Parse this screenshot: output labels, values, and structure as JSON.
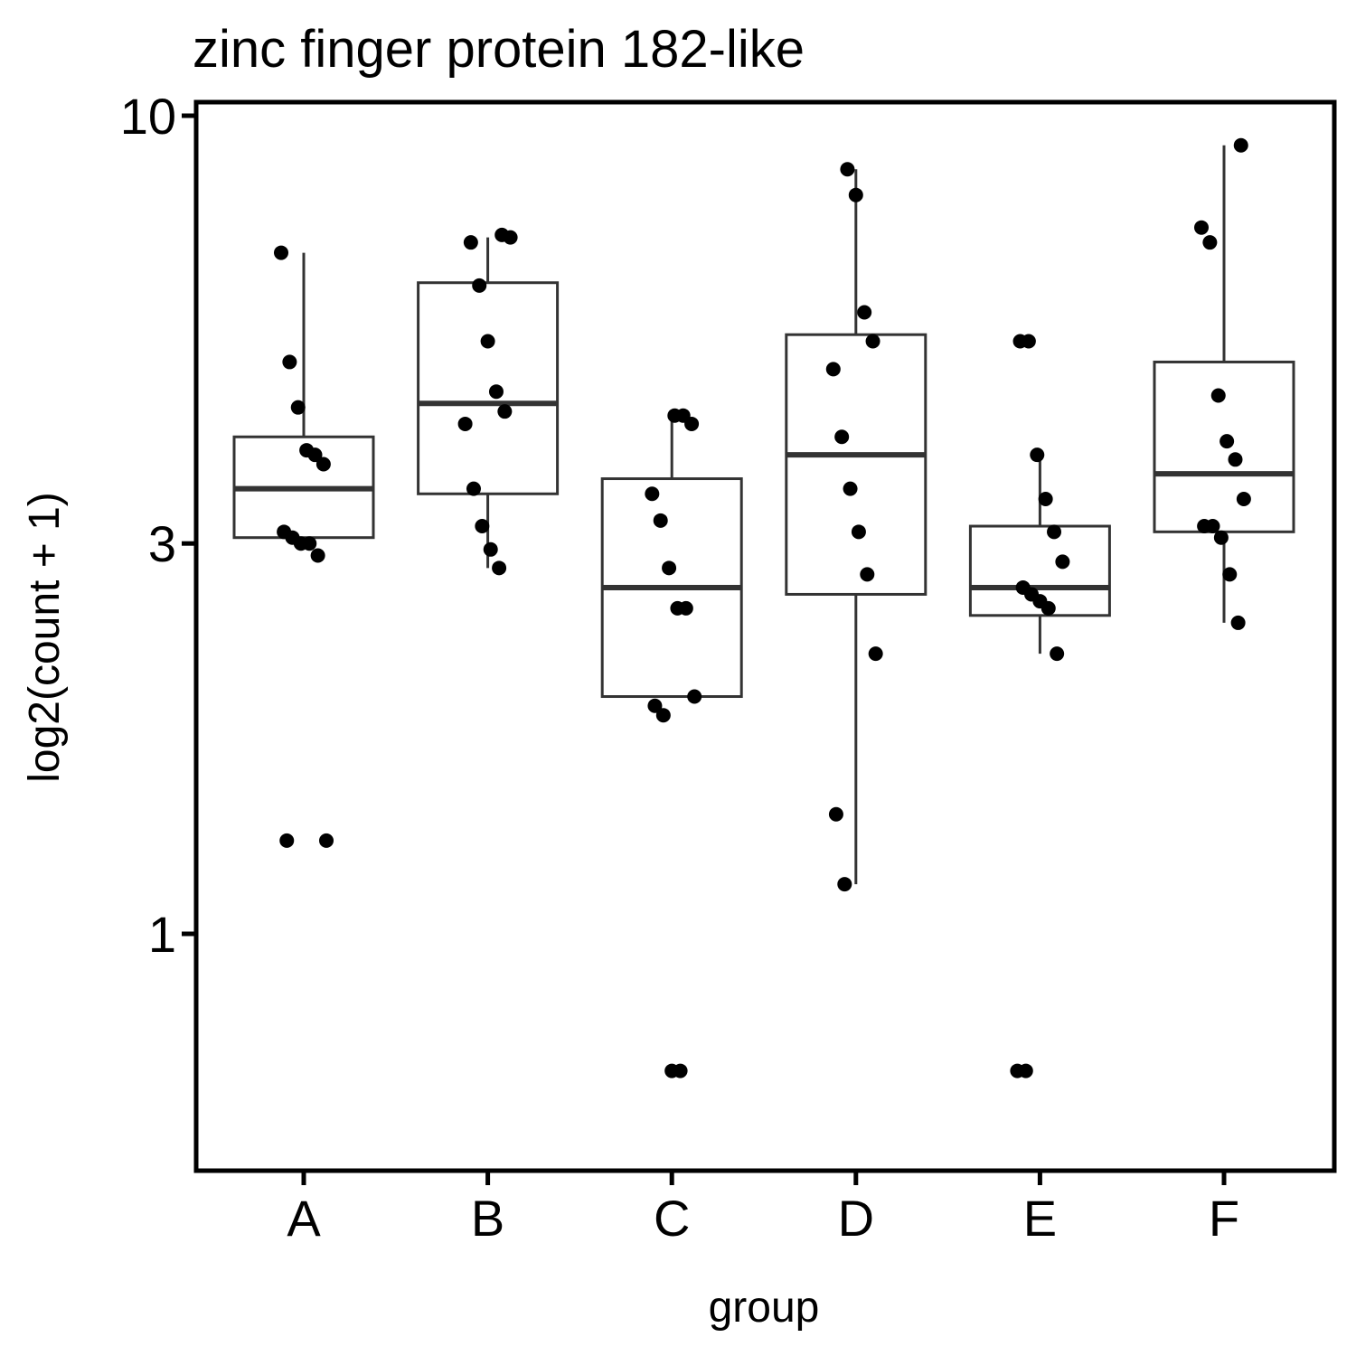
{
  "chart_data": {
    "type": "box",
    "title": "zinc finger protein 182-like",
    "xlabel": "group",
    "ylabel": "log2(count + 1)",
    "y_scale": "log",
    "ylim": [
      0.55,
      10.3
    ],
    "yticks": [
      1,
      3,
      10
    ],
    "ytick_labels": [
      "1",
      "3",
      "10"
    ],
    "categories": [
      "A",
      "B",
      "C",
      "D",
      "E",
      "F"
    ],
    "box_stats": [
      {
        "group": "A",
        "whisker_low": 3.05,
        "q1": 3.05,
        "median": 3.5,
        "q3": 4.05,
        "whisker_high": 6.8
      },
      {
        "group": "B",
        "whisker_low": 2.8,
        "q1": 3.45,
        "median": 4.45,
        "q3": 6.25,
        "whisker_high": 7.1
      },
      {
        "group": "C",
        "whisker_low": 1.95,
        "q1": 1.95,
        "median": 2.65,
        "q3": 3.6,
        "whisker_high": 4.3
      },
      {
        "group": "D",
        "whisker_low": 1.15,
        "q1": 2.6,
        "median": 3.85,
        "q3": 5.4,
        "whisker_high": 8.6
      },
      {
        "group": "E",
        "whisker_low": 2.2,
        "q1": 2.45,
        "median": 2.65,
        "q3": 3.15,
        "whisker_high": 3.8
      },
      {
        "group": "F",
        "whisker_low": 2.4,
        "q1": 3.1,
        "median": 3.65,
        "q3": 5.0,
        "whisker_high": 9.2
      }
    ],
    "points": [
      {
        "group": "A",
        "values": [
          6.8,
          5.0,
          4.4,
          3.9,
          3.85,
          3.75,
          3.1,
          3.05,
          3.0,
          3.0,
          2.9,
          1.3,
          1.3
        ]
      },
      {
        "group": "B",
        "values": [
          7.15,
          7.1,
          7.0,
          6.2,
          5.3,
          4.6,
          4.35,
          4.2,
          3.5,
          3.15,
          2.95,
          2.8
        ]
      },
      {
        "group": "C",
        "values": [
          4.3,
          4.3,
          4.2,
          3.45,
          3.2,
          2.8,
          2.5,
          2.5,
          1.95,
          1.9,
          1.85,
          0.68,
          0.68
        ]
      },
      {
        "group": "D",
        "values": [
          8.6,
          8.0,
          5.75,
          5.3,
          4.9,
          4.05,
          3.5,
          3.1,
          2.75,
          2.2,
          1.4,
          1.15
        ]
      },
      {
        "group": "E",
        "values": [
          5.3,
          5.3,
          3.85,
          3.4,
          3.1,
          2.85,
          2.65,
          2.6,
          2.55,
          2.5,
          2.2,
          0.68,
          0.68
        ]
      },
      {
        "group": "F",
        "values": [
          9.2,
          7.3,
          7.0,
          4.55,
          4.0,
          3.8,
          3.4,
          3.15,
          3.15,
          3.05,
          2.75,
          2.4
        ]
      }
    ],
    "grid": false,
    "legend": "none"
  }
}
